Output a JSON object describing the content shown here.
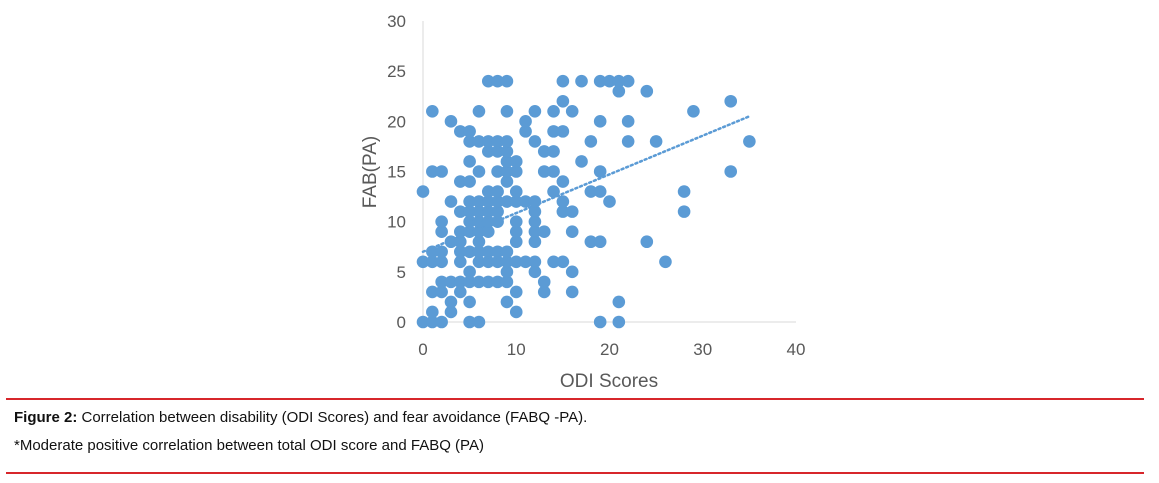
{
  "colors": {
    "marker": "#5b9bd5",
    "trendline": "#5b9bd5",
    "axis": "#d9d9d9",
    "tick_text": "#595959",
    "rule": "#d7262b"
  },
  "caption": {
    "figure_label": "Figure 2:",
    "figure_text": " Correlation between disability (ODI Scores) and fear avoidance (FABQ -PA).",
    "note": "*Moderate positive correlation between total ODI score and FABQ (PA)"
  },
  "chart_data": {
    "type": "scatter",
    "title": "",
    "xlabel": "ODI Scores",
    "ylabel": "FAB(PA)",
    "xlim": [
      0,
      40
    ],
    "ylim": [
      0,
      30
    ],
    "xticks": [
      "0",
      "10",
      "20",
      "30",
      "40"
    ],
    "yticks": [
      "0",
      "5",
      "10",
      "15",
      "20",
      "25",
      "30"
    ],
    "grid": false,
    "legend": "none",
    "trendline": {
      "type": "linear",
      "x": [
        0,
        35
      ],
      "y": [
        7,
        20.5
      ],
      "style": "dotted"
    },
    "points": [
      [
        0,
        0
      ],
      [
        1,
        0
      ],
      [
        2,
        0
      ],
      [
        5,
        0
      ],
      [
        6,
        0
      ],
      [
        10,
        1
      ],
      [
        1,
        1
      ],
      [
        3,
        1
      ],
      [
        19,
        0
      ],
      [
        21,
        0
      ],
      [
        5,
        2
      ],
      [
        3,
        2
      ],
      [
        4,
        3
      ],
      [
        9,
        2
      ],
      [
        1,
        3
      ],
      [
        2,
        3
      ],
      [
        10,
        3
      ],
      [
        13,
        3
      ],
      [
        16,
        3
      ],
      [
        21,
        2
      ],
      [
        2,
        4
      ],
      [
        3,
        4
      ],
      [
        4,
        4
      ],
      [
        5,
        4
      ],
      [
        6,
        4
      ],
      [
        7,
        4
      ],
      [
        8,
        4
      ],
      [
        9,
        4
      ],
      [
        13,
        4
      ],
      [
        5,
        5
      ],
      [
        9,
        5
      ],
      [
        12,
        5
      ],
      [
        16,
        5
      ],
      [
        0,
        6
      ],
      [
        1,
        6
      ],
      [
        2,
        6
      ],
      [
        4,
        6
      ],
      [
        6,
        6
      ],
      [
        7,
        6
      ],
      [
        8,
        6
      ],
      [
        9,
        6
      ],
      [
        10,
        6
      ],
      [
        11,
        6
      ],
      [
        12,
        6
      ],
      [
        14,
        6
      ],
      [
        15,
        6
      ],
      [
        26,
        6
      ],
      [
        1,
        7
      ],
      [
        2,
        7
      ],
      [
        4,
        7
      ],
      [
        5,
        7
      ],
      [
        6,
        7
      ],
      [
        7,
        7
      ],
      [
        8,
        7
      ],
      [
        9,
        7
      ],
      [
        3,
        8
      ],
      [
        4,
        8
      ],
      [
        6,
        8
      ],
      [
        10,
        8
      ],
      [
        12,
        8
      ],
      [
        18,
        8
      ],
      [
        19,
        8
      ],
      [
        24,
        8
      ],
      [
        2,
        9
      ],
      [
        4,
        9
      ],
      [
        5,
        9
      ],
      [
        6,
        9
      ],
      [
        7,
        9
      ],
      [
        10,
        9
      ],
      [
        12,
        9
      ],
      [
        13,
        9
      ],
      [
        16,
        9
      ],
      [
        2,
        10
      ],
      [
        5,
        10
      ],
      [
        6,
        10
      ],
      [
        7,
        10
      ],
      [
        8,
        10
      ],
      [
        10,
        10
      ],
      [
        12,
        10
      ],
      [
        4,
        11
      ],
      [
        5,
        11
      ],
      [
        6,
        11
      ],
      [
        7,
        11
      ],
      [
        8,
        11
      ],
      [
        12,
        11
      ],
      [
        15,
        11
      ],
      [
        16,
        11
      ],
      [
        28,
        11
      ],
      [
        3,
        12
      ],
      [
        5,
        12
      ],
      [
        6,
        12
      ],
      [
        7,
        12
      ],
      [
        8,
        12
      ],
      [
        9,
        12
      ],
      [
        10,
        12
      ],
      [
        11,
        12
      ],
      [
        12,
        12
      ],
      [
        15,
        12
      ],
      [
        20,
        12
      ],
      [
        0,
        13
      ],
      [
        7,
        13
      ],
      [
        8,
        13
      ],
      [
        10,
        13
      ],
      [
        14,
        13
      ],
      [
        18,
        13
      ],
      [
        19,
        13
      ],
      [
        28,
        13
      ],
      [
        4,
        14
      ],
      [
        5,
        14
      ],
      [
        9,
        14
      ],
      [
        15,
        14
      ],
      [
        1,
        15
      ],
      [
        2,
        15
      ],
      [
        6,
        15
      ],
      [
        8,
        15
      ],
      [
        9,
        15
      ],
      [
        10,
        15
      ],
      [
        13,
        15
      ],
      [
        14,
        15
      ],
      [
        19,
        15
      ],
      [
        33,
        15
      ],
      [
        5,
        16
      ],
      [
        9,
        16
      ],
      [
        10,
        16
      ],
      [
        17,
        16
      ],
      [
        7,
        17
      ],
      [
        8,
        17
      ],
      [
        9,
        17
      ],
      [
        13,
        17
      ],
      [
        14,
        17
      ],
      [
        5,
        18
      ],
      [
        6,
        18
      ],
      [
        7,
        18
      ],
      [
        8,
        18
      ],
      [
        9,
        18
      ],
      [
        12,
        18
      ],
      [
        18,
        18
      ],
      [
        22,
        18
      ],
      [
        25,
        18
      ],
      [
        35,
        18
      ],
      [
        4,
        19
      ],
      [
        5,
        19
      ],
      [
        11,
        19
      ],
      [
        14,
        19
      ],
      [
        15,
        19
      ],
      [
        3,
        20
      ],
      [
        11,
        20
      ],
      [
        19,
        20
      ],
      [
        22,
        20
      ],
      [
        1,
        21
      ],
      [
        6,
        21
      ],
      [
        9,
        21
      ],
      [
        12,
        21
      ],
      [
        14,
        21
      ],
      [
        16,
        21
      ],
      [
        29,
        21
      ],
      [
        15,
        22
      ],
      [
        33,
        22
      ],
      [
        21,
        23
      ],
      [
        24,
        23
      ],
      [
        7,
        24
      ],
      [
        8,
        24
      ],
      [
        9,
        24
      ],
      [
        15,
        24
      ],
      [
        17,
        24
      ],
      [
        19,
        24
      ],
      [
        20,
        24
      ],
      [
        21,
        24
      ],
      [
        22,
        24
      ]
    ]
  }
}
